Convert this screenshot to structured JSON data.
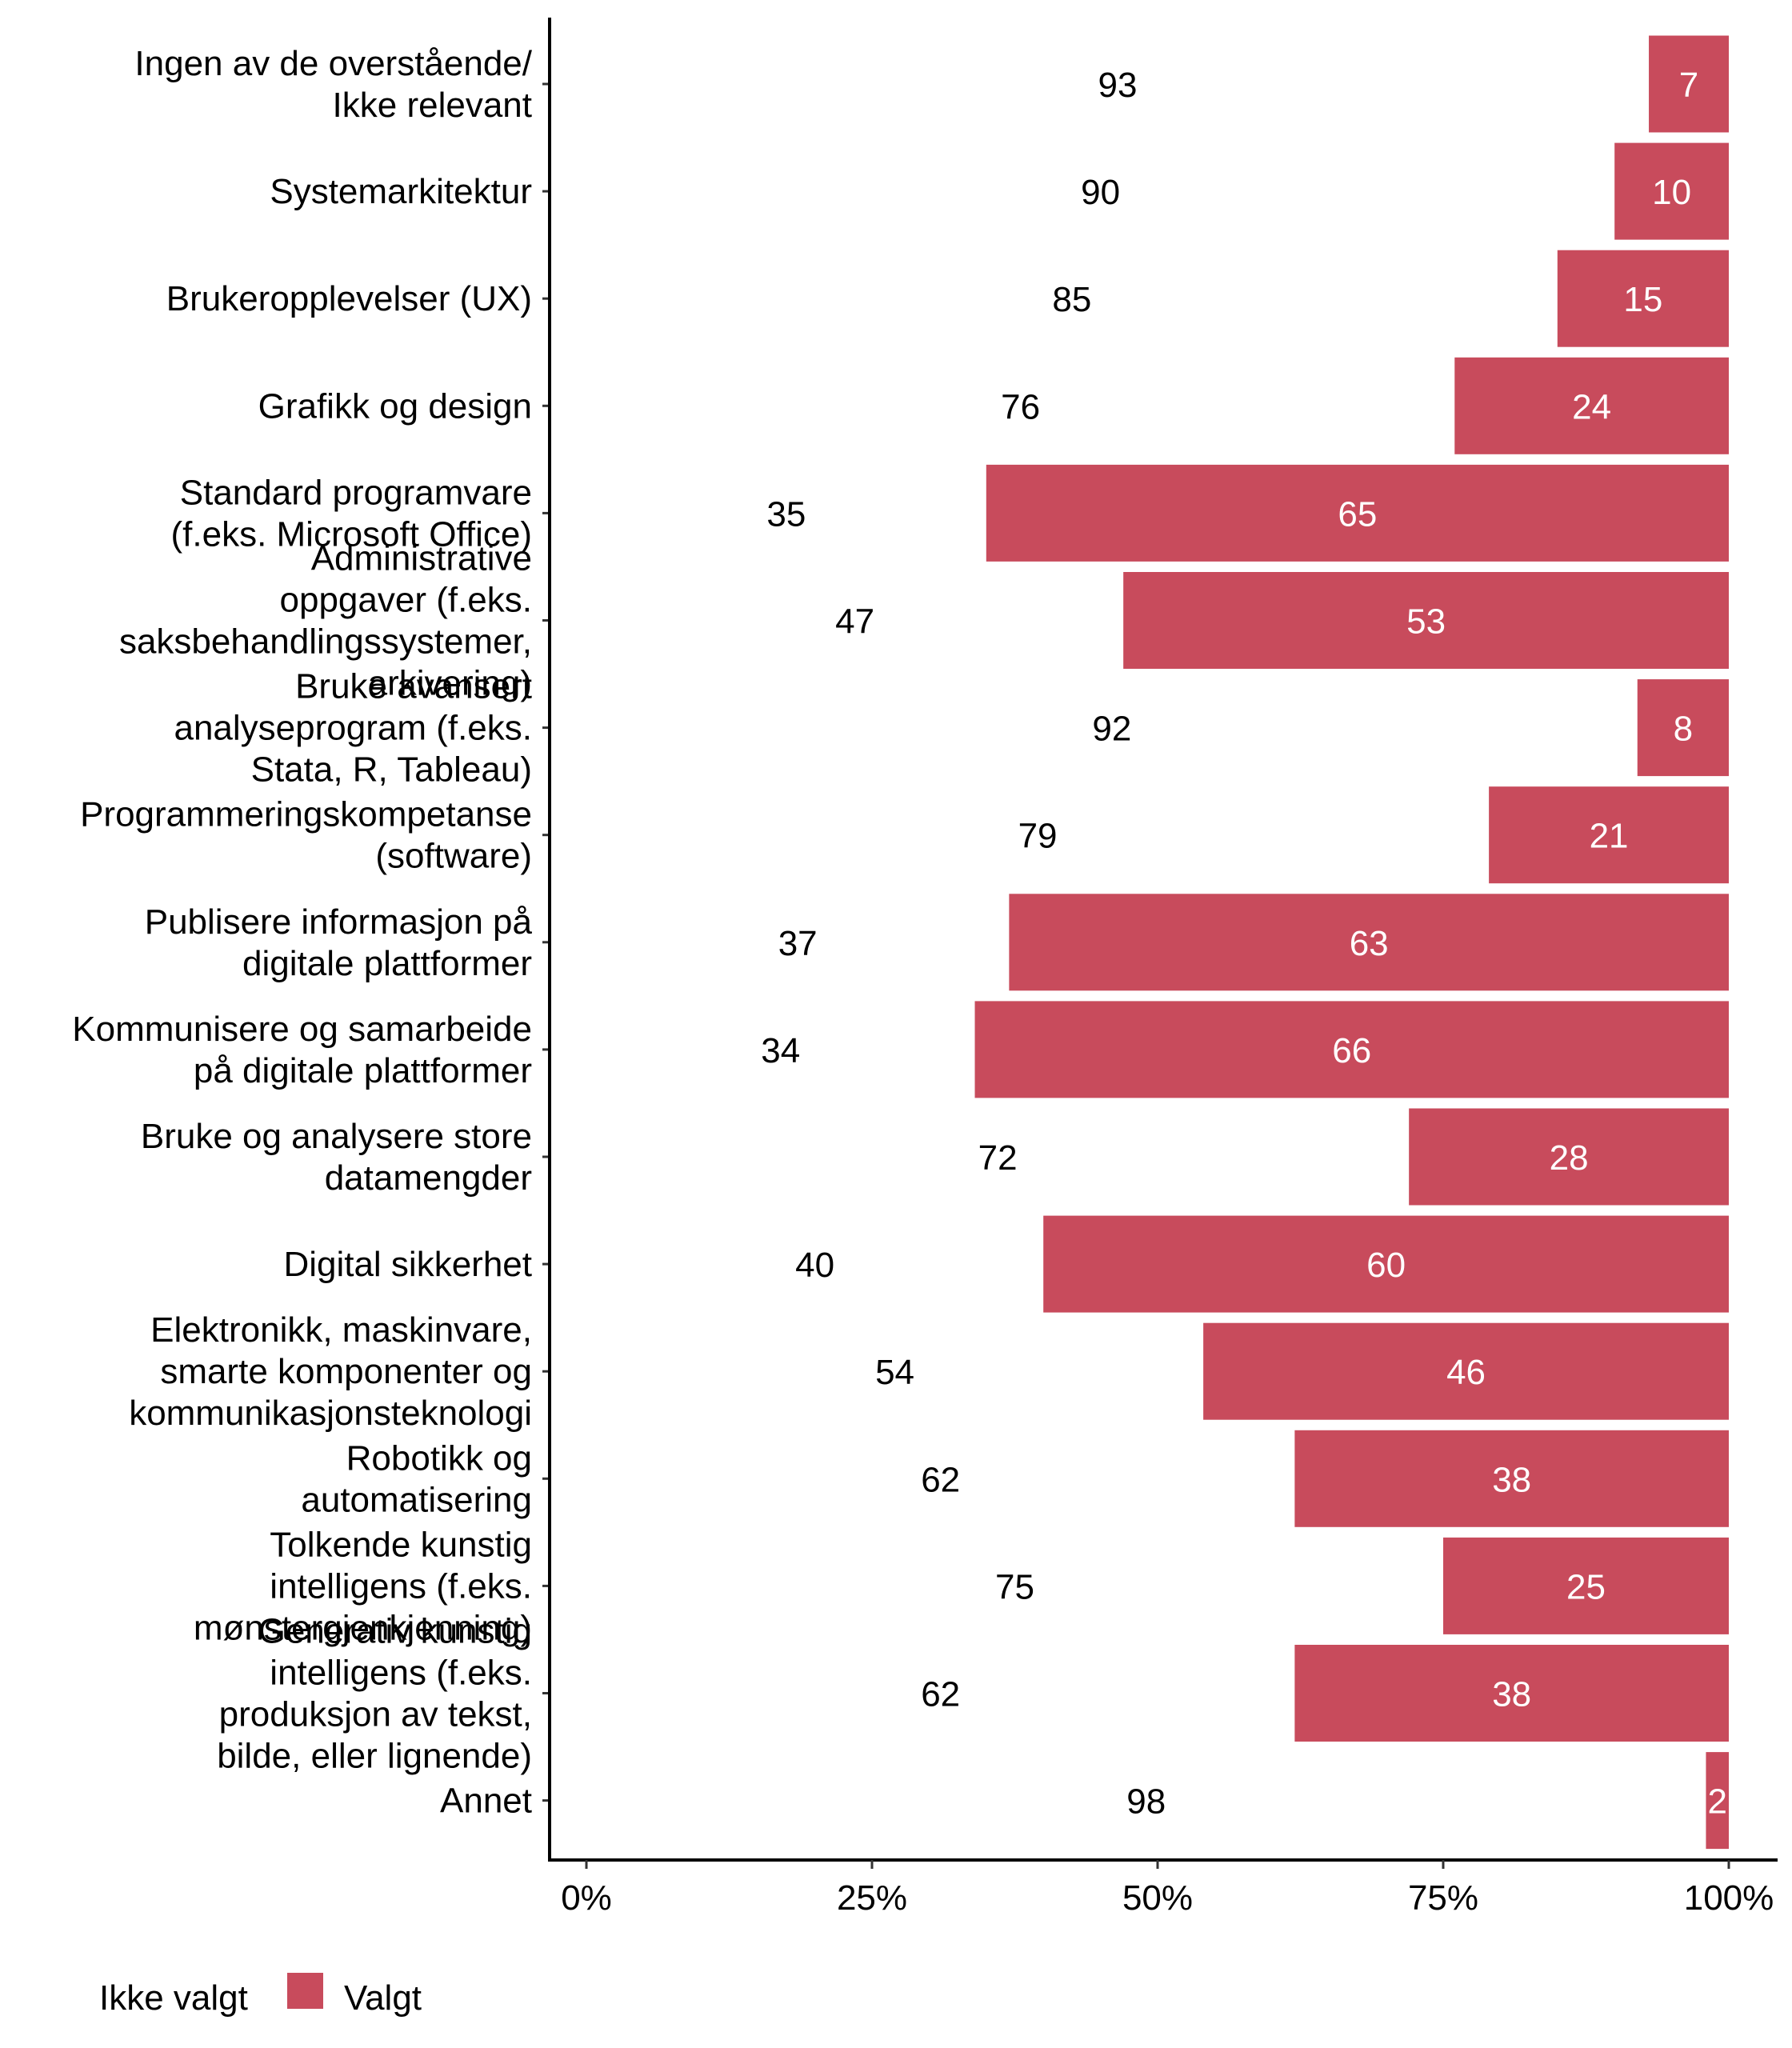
{
  "chart_data": {
    "type": "bar",
    "orientation": "horizontal",
    "stacked": true,
    "title": "",
    "xlabel": "",
    "ylabel": "",
    "xlim": [
      0,
      100
    ],
    "x_ticks": [
      "0%",
      "25%",
      "50%",
      "75%",
      "100%"
    ],
    "grid": false,
    "legend_position": "bottom-left",
    "categories": [
      [
        "Ingen av de overstående/",
        "Ikke relevant"
      ],
      [
        "Systemarkitektur"
      ],
      [
        "Brukeropplevelser (UX)"
      ],
      [
        "Grafikk og design"
      ],
      [
        "Standard programvare",
        "(f.eks. Microsoft Office)"
      ],
      [
        "Administrative",
        "oppgaver (f.eks.",
        "saksbehandlingssystemer,",
        "arkivering)"
      ],
      [
        "Bruke avansert",
        "analyseprogram (f.eks.",
        "Stata, R, Tableau)"
      ],
      [
        "Programmeringskompetanse",
        "(software)"
      ],
      [
        "Publisere informasjon på",
        "digitale plattformer"
      ],
      [
        "Kommunisere og samarbeide",
        "på digitale plattformer"
      ],
      [
        "Bruke og analysere store",
        "datamengder"
      ],
      [
        "Digital sikkerhet"
      ],
      [
        "Elektronikk, maskinvare,",
        "smarte komponenter og",
        "kommunikasjonsteknologi"
      ],
      [
        "Robotikk og",
        "automatisering"
      ],
      [
        "Tolkende kunstig",
        "intelligens (f.eks.",
        "mønstergjenkjenning)"
      ],
      [
        "Generativ kunstig",
        "intelligens (f.eks.",
        "produksjon av tekst,",
        "bilde, eller lignende)"
      ],
      [
        "Annet"
      ]
    ],
    "series": [
      {
        "name": "Ikke valgt",
        "color": "#ffffff",
        "label_color": "#000000",
        "values": [
          93,
          90,
          85,
          76,
          35,
          47,
          92,
          79,
          37,
          34,
          72,
          40,
          54,
          62,
          75,
          62,
          98
        ]
      },
      {
        "name": "Valgt",
        "color": "#C84B5C",
        "label_color": "#ffffff",
        "values": [
          7,
          10,
          15,
          24,
          65,
          53,
          8,
          21,
          63,
          66,
          28,
          60,
          46,
          38,
          25,
          38,
          2
        ]
      }
    ]
  },
  "legend": {
    "items": [
      {
        "label": "Ikke valgt",
        "color": "#ffffff"
      },
      {
        "label": "Valgt",
        "color": "#C84B5C"
      }
    ]
  }
}
